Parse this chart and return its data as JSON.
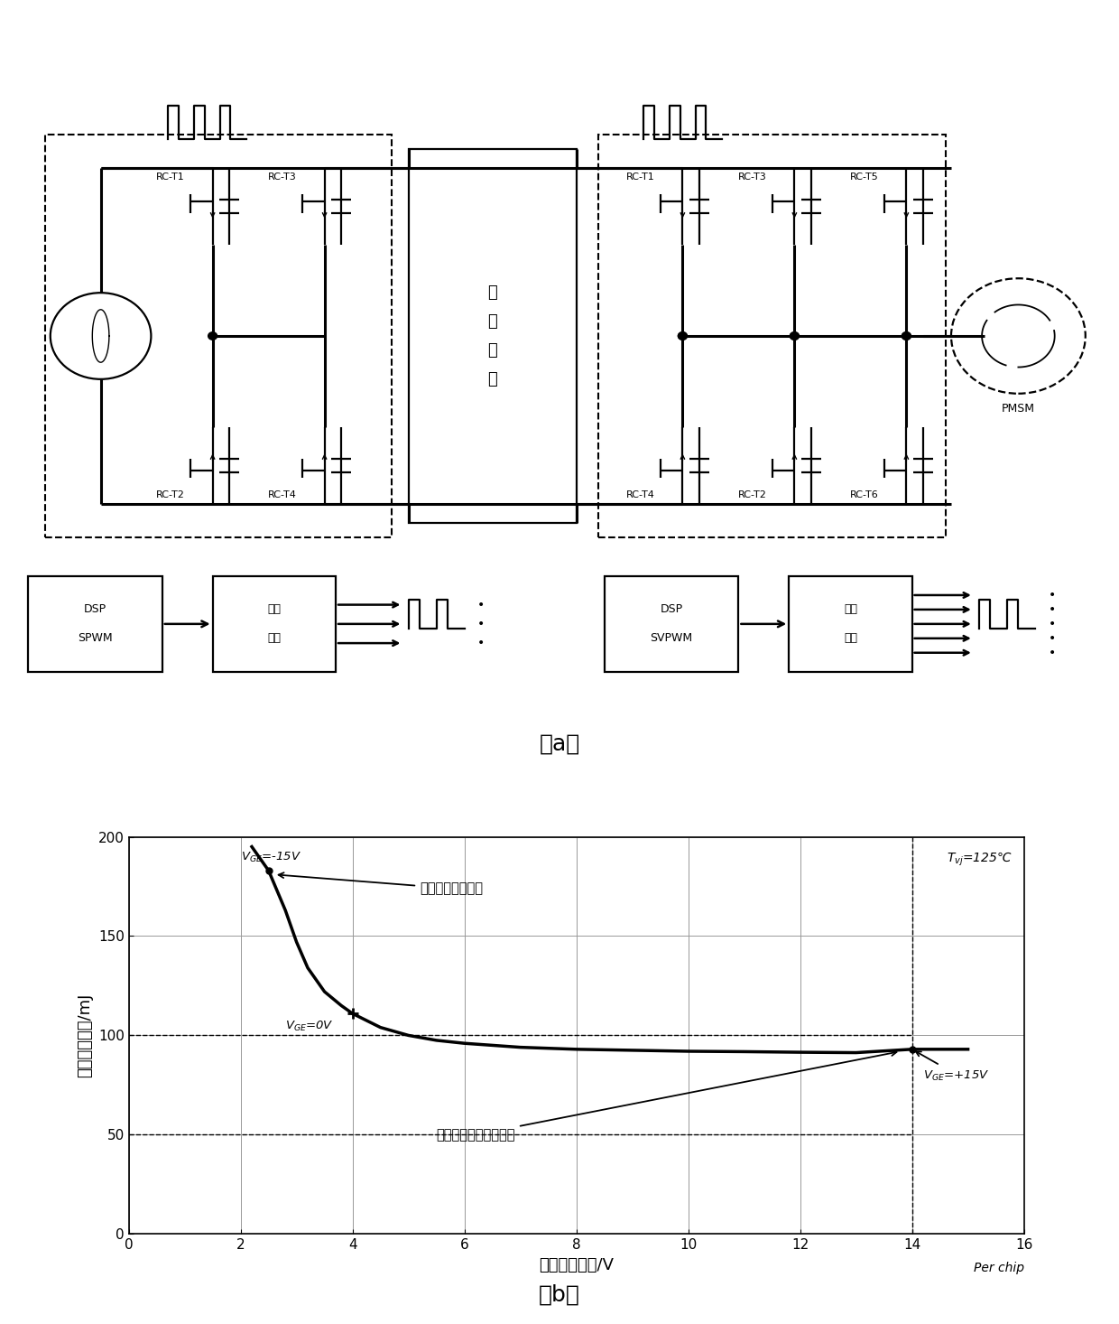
{
  "fig_width": 12.4,
  "fig_height": 14.66,
  "bg_color": "#ffffff",
  "line_color": "#000000",
  "curve_x": [
    2.2,
    2.5,
    2.8,
    3.0,
    3.2,
    3.5,
    3.8,
    4.0,
    4.5,
    5.0,
    5.5,
    6.0,
    7.0,
    8.0,
    9.0,
    10.0,
    11.0,
    12.0,
    13.0,
    14.0,
    15.0
  ],
  "curve_y": [
    195,
    183,
    163,
    147,
    134,
    122,
    115,
    111,
    104,
    100,
    97.5,
    96,
    94,
    93,
    92.5,
    92,
    91.8,
    91.5,
    91.3,
    93,
    93
  ],
  "xlabel": "正向导通压降/V",
  "ylabel": "反向恢复损耗/mJ",
  "xlim": [
    0,
    16
  ],
  "ylim": [
    0,
    200
  ],
  "xticks": [
    0,
    2,
    4,
    6,
    8,
    10,
    12,
    14,
    16
  ],
  "yticks": [
    0,
    50,
    100,
    150,
    200
  ],
  "per_chip": "Per chip",
  "label_a": "（a）",
  "label_b": "（b）",
  "tvj_label": "$T_{vj}$=125℃",
  "vge_neg15": "$V_{GE}$=-15V",
  "vge_0": "$V_{GE}$=0V",
  "vge_pos15": "$V_{GE}$=+15V",
  "low_conduct": "低导通损耗工作点",
  "low_reverse": "低反向恢复损耗工作点"
}
